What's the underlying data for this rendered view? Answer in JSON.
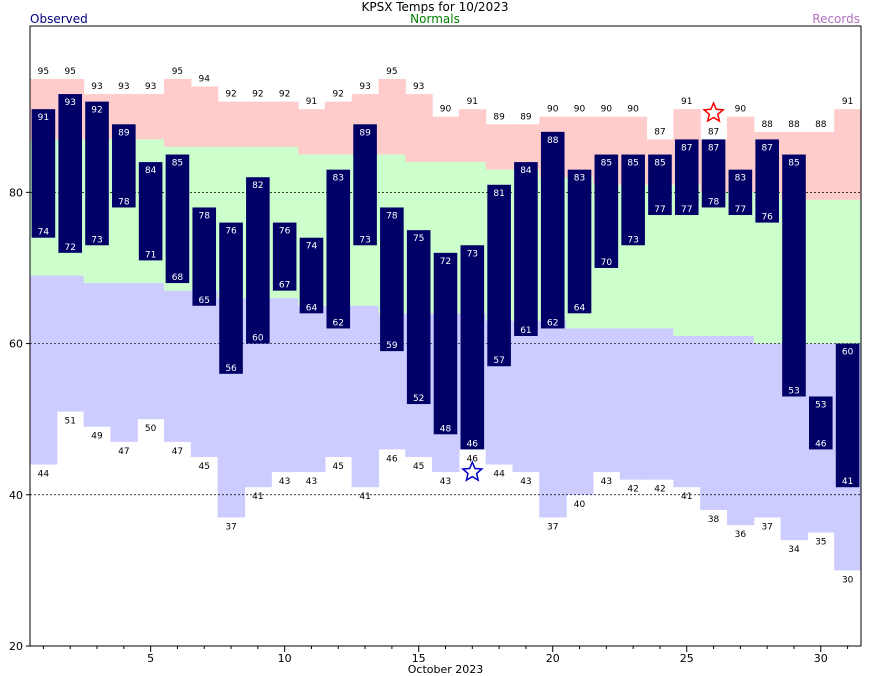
{
  "title": "KPSX Temps for 10/2023",
  "legend": {
    "observed": "Observed",
    "normals": "Normals",
    "records": "Records"
  },
  "colors": {
    "observed_bar": "#000066",
    "normal_band": "#ccffcc",
    "record_high_band": "#ffcccc",
    "record_low_band": "#ccccff",
    "record_high_star": "#ff0000",
    "record_low_star": "#0000cc"
  },
  "chart_data": {
    "type": "bar",
    "title": "KPSX Temps for 10/2023",
    "xlabel": "October 2023",
    "ylabel": "",
    "ylim": [
      20,
      102
    ],
    "xlim": [
      0.5,
      31.5
    ],
    "y_ticks": [
      20,
      40,
      60,
      80
    ],
    "x_ticks": [
      5,
      10,
      15,
      20,
      25,
      30
    ],
    "grid": "dashed lines at 40, 60, 80",
    "days": [
      1,
      2,
      3,
      4,
      5,
      6,
      7,
      8,
      9,
      10,
      11,
      12,
      13,
      14,
      15,
      16,
      17,
      18,
      19,
      20,
      21,
      22,
      23,
      24,
      25,
      26,
      27,
      28,
      29,
      30,
      31
    ],
    "observed_high": [
      91,
      93,
      92,
      89,
      84,
      85,
      78,
      76,
      82,
      76,
      74,
      83,
      89,
      78,
      75,
      72,
      73,
      81,
      84,
      88,
      83,
      85,
      85,
      85,
      87,
      87,
      83,
      87,
      85,
      53,
      60
    ],
    "observed_low": [
      74,
      72,
      73,
      78,
      71,
      68,
      65,
      56,
      60,
      67,
      64,
      62,
      73,
      59,
      52,
      48,
      46,
      57,
      61,
      62,
      64,
      70,
      73,
      77,
      77,
      78,
      77,
      76,
      53,
      46,
      41
    ],
    "normal_high": [
      null,
      null,
      null,
      null,
      null,
      null,
      null,
      null,
      null,
      null,
      null,
      null,
      null,
      null,
      null,
      null,
      null,
      null,
      null,
      null,
      null,
      null,
      null,
      null,
      null,
      null,
      null,
      null,
      null,
      null,
      null
    ],
    "normal_low": [
      null,
      null,
      null,
      null,
      null,
      null,
      null,
      null,
      null,
      null,
      null,
      null,
      null,
      null,
      null,
      null,
      null,
      null,
      null,
      null,
      null,
      null,
      null,
      null,
      null,
      null,
      null,
      null,
      null,
      null,
      null
    ],
    "record_high": [
      95,
      95,
      93,
      93,
      93,
      95,
      94,
      92,
      92,
      92,
      91,
      92,
      93,
      95,
      93,
      90,
      91,
      89,
      89,
      90,
      90,
      90,
      90,
      87,
      91,
      87,
      90,
      88,
      88,
      88,
      91
    ],
    "record_low": [
      44,
      51,
      49,
      47,
      50,
      47,
      45,
      37,
      41,
      43,
      43,
      45,
      41,
      46,
      45,
      43,
      46,
      44,
      43,
      37,
      40,
      43,
      42,
      42,
      41,
      38,
      36,
      37,
      34,
      35,
      30
    ],
    "normal_high_band": [
      87,
      87,
      87,
      87,
      87,
      86,
      86,
      86,
      86,
      86,
      85,
      85,
      85,
      85,
      84,
      84,
      84,
      83,
      83,
      82,
      82,
      81,
      81,
      81,
      81,
      80,
      80,
      80,
      79,
      79,
      79
    ],
    "normal_low_band": [
      69,
      69,
      68,
      68,
      68,
      67,
      67,
      66,
      66,
      66,
      65,
      65,
      65,
      64,
      64,
      64,
      64,
      63,
      63,
      63,
      62,
      62,
      62,
      62,
      61,
      61,
      61,
      60,
      60,
      60,
      60
    ],
    "record_high_star_day": 26,
    "record_low_star_day": 17,
    "record_high_star_value": 90.5,
    "record_low_star_value": 43
  }
}
